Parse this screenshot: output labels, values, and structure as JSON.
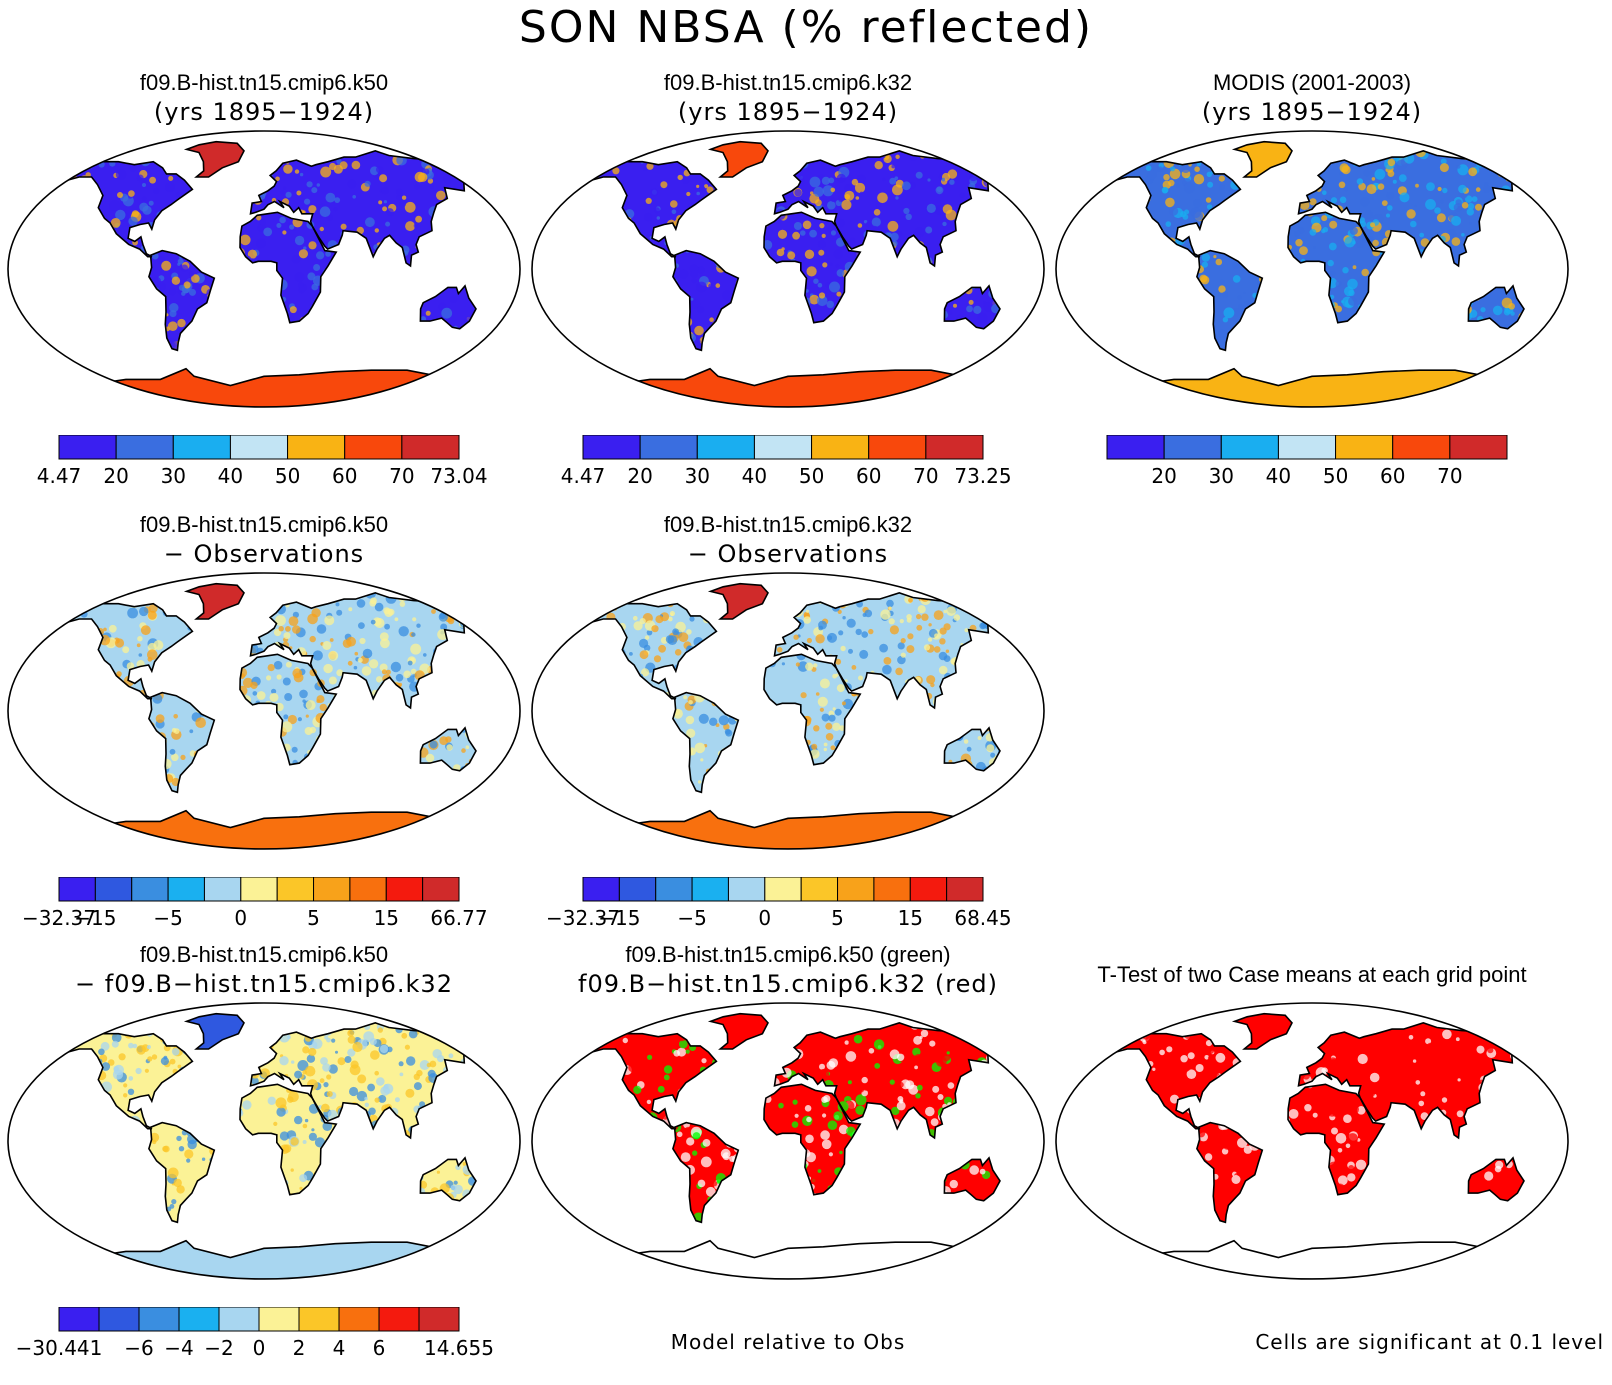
{
  "title": "SON NBSA (% reflected)",
  "palettes": {
    "abs": [
      "#3a1ff0",
      "#3a6ee0",
      "#1aaef0",
      "#c2e4f4",
      "#f9b314",
      "#f8480c",
      "#d02a2a"
    ],
    "diff": [
      "#3a1ff0",
      "#2f58e0",
      "#3a8ee0",
      "#1ab0f0",
      "#a8d6f0",
      "#fbf296",
      "#fbc628",
      "#f8a21a",
      "#f8700e",
      "#f41a0e",
      "#d02a2a"
    ],
    "diff3": [
      "#3a1ff0",
      "#2f58e0",
      "#3a8ee0",
      "#1ab0f0",
      "#a8d6f0",
      "#fbf296",
      "#fbc628",
      "#f8700e",
      "#f41a0e",
      "#d02a2a"
    ],
    "sign": [
      "#ff0000",
      "#00ff00",
      "#ffffff"
    ]
  },
  "panels": [
    {
      "title1": "f09.B-hist.tn15.cmip6.k50",
      "title2": "(yrs 1895−1924)",
      "land": "#3a1ff0",
      "mix": [
        "#3a6ee0",
        "#3a1ff0",
        "#f9b314"
      ],
      "antarctic": "#f8480c",
      "greenland": "#d02a2a",
      "colorbar": {
        "palette": "abs",
        "labels": [
          "4.47",
          "20",
          "30",
          "40",
          "50",
          "60",
          "70",
          "73.04"
        ]
      }
    },
    {
      "title1": "f09.B-hist.tn15.cmip6.k32",
      "title2": "(yrs 1895−1924)",
      "land": "#3a1ff0",
      "mix": [
        "#3a6ee0",
        "#3a1ff0",
        "#f9b314"
      ],
      "antarctic": "#f8480c",
      "greenland": "#f8480c",
      "colorbar": {
        "palette": "abs",
        "labels": [
          "4.47",
          "20",
          "30",
          "40",
          "50",
          "60",
          "70",
          "73.25"
        ]
      }
    },
    {
      "title1": "MODIS (2001-2003)",
      "title2": "(yrs 1895−1924)",
      "land": "#3a6ee0",
      "mix": [
        "#3a6ee0",
        "#1aaef0",
        "#f9b314"
      ],
      "antarctic": "#f9b314",
      "greenland": "#f9b314",
      "colorbar": {
        "palette": "abs",
        "labels": [
          "",
          "20",
          "30",
          "40",
          "50",
          "60",
          "70",
          ""
        ]
      }
    },
    {
      "title1": "f09.B-hist.tn15.cmip6.k50",
      "title2": "− Observations",
      "land": "#a8d6f0",
      "mix": [
        "#3a8ee0",
        "#fbf296",
        "#f8a21a"
      ],
      "antarctic": "#f8700e",
      "greenland": "#d02a2a",
      "colorbar": {
        "palette": "diff",
        "labels": [
          "−32.37",
          "−15",
          "",
          "−5",
          "",
          "0",
          "",
          "5",
          "",
          "15",
          "",
          "66.77"
        ]
      }
    },
    {
      "title1": "f09.B-hist.tn15.cmip6.k32",
      "title2": "− Observations",
      "land": "#a8d6f0",
      "mix": [
        "#3a8ee0",
        "#fbf296",
        "#f8a21a"
      ],
      "antarctic": "#f8700e",
      "greenland": "#d02a2a",
      "colorbar": {
        "palette": "diff",
        "labels": [
          "−32.37",
          "−15",
          "",
          "−5",
          "",
          "0",
          "",
          "5",
          "",
          "15",
          "",
          "68.45"
        ]
      }
    },
    {
      "title1": "f09.B-hist.tn15.cmip6.k50",
      "title2": "− f09.B−hist.tn15.cmip6.k32",
      "land": "#fbf296",
      "mix": [
        "#a8d6f0",
        "#fbc628",
        "#3a8ee0"
      ],
      "antarctic": "#a8d6f0",
      "greenland": "#2f58e0",
      "colorbar": {
        "palette": "diff3",
        "labels": [
          "−30.441",
          "",
          "−6",
          "−4",
          "−2",
          "0",
          "2",
          "4",
          "6",
          "",
          "14.655"
        ]
      }
    },
    {
      "title1": "f09.B-hist.tn15.cmip6.k50 (green)",
      "title2": "f09.B−hist.tn15.cmip6.k32 (red)",
      "land": "#ff0000",
      "mix": [
        "#00ff00",
        "#ffffff",
        "#ff0000"
      ],
      "antarctic": "#ffffff",
      "greenland": "#ff0000"
    },
    {
      "title": "T-Test of two Case means at each grid point",
      "land": "#ff0000",
      "mix": [
        "#ffffff",
        "#ff0000",
        "#ff0000"
      ],
      "antarctic": "#ffffff",
      "greenland": "#ff0000"
    }
  ],
  "footnotes": {
    "model_relative": "Model relative to Obs",
    "significance": "Cells are significant at 0.1 level"
  }
}
